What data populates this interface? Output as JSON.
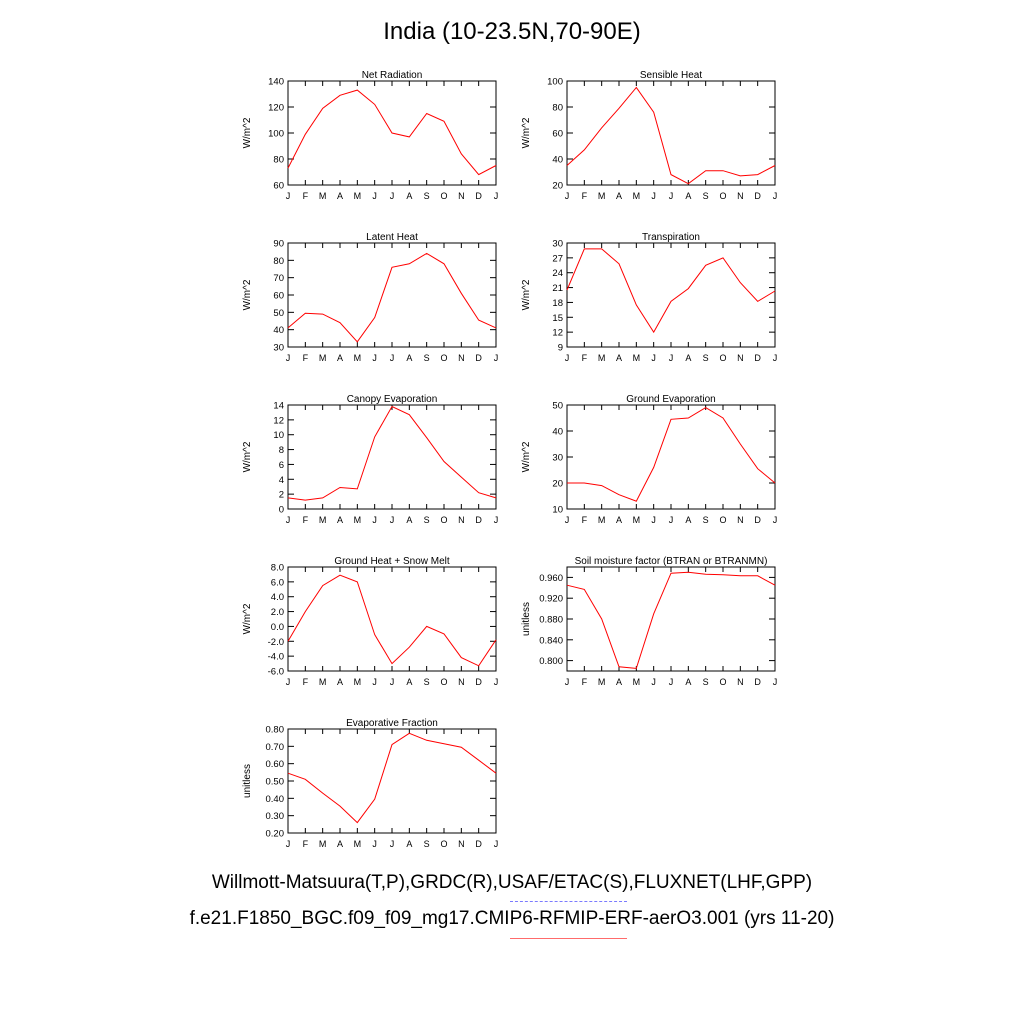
{
  "title": "India (10-23.5N,70-90E)",
  "footer": {
    "obs_line": "Willmott-Matsuura(T,P),GRDC(R),USAF/ETAC(S),FLUXNET(LHF,GPP)",
    "model_line": "f.e21.F1850_BGC.f09_f09_mg17.CMIP6-RFMIP-ERF-aerO3.001 (yrs 11-20)"
  },
  "colors": {
    "model_line": "#ff0000",
    "obs_legend": "#7b7bff",
    "model_legend": "#ff6b6b"
  },
  "chart_data": [
    {
      "type": "line",
      "title": "Net Radiation",
      "ylabel": "W/m^2",
      "categories": [
        "J",
        "F",
        "M",
        "A",
        "M",
        "J",
        "J",
        "A",
        "S",
        "O",
        "N",
        "D",
        "J"
      ],
      "values": [
        73,
        99,
        119,
        129,
        133,
        122,
        100,
        97,
        115,
        109,
        84,
        68,
        75
      ],
      "ylim": [
        60,
        140
      ],
      "yticks": [
        "60",
        "80",
        "100",
        "120",
        "140"
      ]
    },
    {
      "type": "line",
      "title": "Sensible Heat",
      "ylabel": "W/m^2",
      "categories": [
        "J",
        "F",
        "M",
        "A",
        "M",
        "J",
        "J",
        "A",
        "S",
        "O",
        "N",
        "D",
        "J"
      ],
      "values": [
        35,
        47,
        64,
        79,
        95,
        76,
        28,
        21,
        31,
        31,
        27,
        28,
        35
      ],
      "ylim": [
        20,
        100
      ],
      "yticks": [
        "20",
        "40",
        "60",
        "80",
        "100"
      ]
    },
    {
      "type": "line",
      "title": "Latent Heat",
      "ylabel": "W/m^2",
      "categories": [
        "J",
        "F",
        "M",
        "A",
        "M",
        "J",
        "J",
        "A",
        "S",
        "O",
        "N",
        "D",
        "J"
      ],
      "values": [
        41,
        49.5,
        49,
        44,
        33,
        47,
        76,
        78,
        84,
        78,
        61,
        45.5,
        41
      ],
      "ylim": [
        30,
        90
      ],
      "yticks": [
        "30",
        "40",
        "50",
        "60",
        "70",
        "80",
        "90"
      ]
    },
    {
      "type": "line",
      "title": "Transpiration",
      "ylabel": "W/m^2",
      "categories": [
        "J",
        "F",
        "M",
        "A",
        "M",
        "J",
        "J",
        "A",
        "S",
        "O",
        "N",
        "D",
        "J"
      ],
      "values": [
        20.5,
        28.8,
        28.8,
        25.8,
        17.5,
        12,
        18.2,
        20.8,
        25.5,
        27,
        22,
        18.2,
        20.3
      ],
      "ylim": [
        9,
        30
      ],
      "yticks": [
        "9",
        "12",
        "15",
        "18",
        "21",
        "24",
        "27",
        "30"
      ]
    },
    {
      "type": "line",
      "title": "Canopy Evaporation",
      "ylabel": "W/m^2",
      "categories": [
        "J",
        "F",
        "M",
        "A",
        "M",
        "J",
        "J",
        "A",
        "S",
        "O",
        "N",
        "D",
        "J"
      ],
      "values": [
        1.5,
        1.2,
        1.5,
        2.9,
        2.7,
        9.7,
        13.8,
        12.7,
        9.6,
        6.4,
        4.3,
        2.2,
        1.5
      ],
      "ylim": [
        0,
        14
      ],
      "yticks": [
        "0",
        "2",
        "4",
        "6",
        "8",
        "10",
        "12",
        "14"
      ]
    },
    {
      "type": "line",
      "title": "Ground Evaporation",
      "ylabel": "W/m^2",
      "categories": [
        "J",
        "F",
        "M",
        "A",
        "M",
        "J",
        "J",
        "A",
        "S",
        "O",
        "N",
        "D",
        "J"
      ],
      "values": [
        20,
        20,
        19,
        15.5,
        13,
        26,
        44.5,
        45,
        49,
        45,
        35,
        25.5,
        20
      ],
      "ylim": [
        10,
        50
      ],
      "yticks": [
        "10",
        "20",
        "30",
        "40",
        "50"
      ]
    },
    {
      "type": "line",
      "title": "Ground Heat + Snow Melt",
      "ylabel": "W/m^2",
      "categories": [
        "J",
        "F",
        "M",
        "A",
        "M",
        "J",
        "J",
        "A",
        "S",
        "O",
        "N",
        "D",
        "J"
      ],
      "values": [
        -2,
        2,
        5.5,
        6.9,
        6,
        -1.1,
        -5,
        -2.8,
        0,
        -1,
        -4.2,
        -5.3,
        -1.8
      ],
      "ylim": [
        -6,
        8
      ],
      "yticks": [
        "-6.0",
        "-4.0",
        "-2.0",
        "0.0",
        "2.0",
        "4.0",
        "6.0",
        "8.0"
      ]
    },
    {
      "type": "line",
      "title": "Soil moisture factor (BTRAN or BTRANMN)",
      "ylabel": "unitless",
      "categories": [
        "J",
        "F",
        "M",
        "A",
        "M",
        "J",
        "J",
        "A",
        "S",
        "O",
        "N",
        "D",
        "J"
      ],
      "values": [
        0.945,
        0.937,
        0.88,
        0.788,
        0.785,
        0.89,
        0.968,
        0.97,
        0.966,
        0.965,
        0.963,
        0.963,
        0.945
      ],
      "ylim": [
        0.78,
        0.98
      ],
      "yticks": [
        "0.800",
        "0.840",
        "0.880",
        "0.920",
        "0.960"
      ],
      "ytick_values": [
        0.8,
        0.84,
        0.88,
        0.92,
        0.96
      ]
    },
    {
      "type": "line",
      "title": "Evaporative Fraction",
      "ylabel": "unitless",
      "categories": [
        "J",
        "F",
        "M",
        "A",
        "M",
        "J",
        "J",
        "A",
        "S",
        "O",
        "N",
        "D",
        "J"
      ],
      "values": [
        0.545,
        0.51,
        0.43,
        0.355,
        0.26,
        0.395,
        0.71,
        0.775,
        0.735,
        0.715,
        0.695,
        0.62,
        0.545
      ],
      "ylim": [
        0.2,
        0.8
      ],
      "yticks": [
        "0.20",
        "0.30",
        "0.40",
        "0.50",
        "0.60",
        "0.70",
        "0.80"
      ]
    }
  ]
}
